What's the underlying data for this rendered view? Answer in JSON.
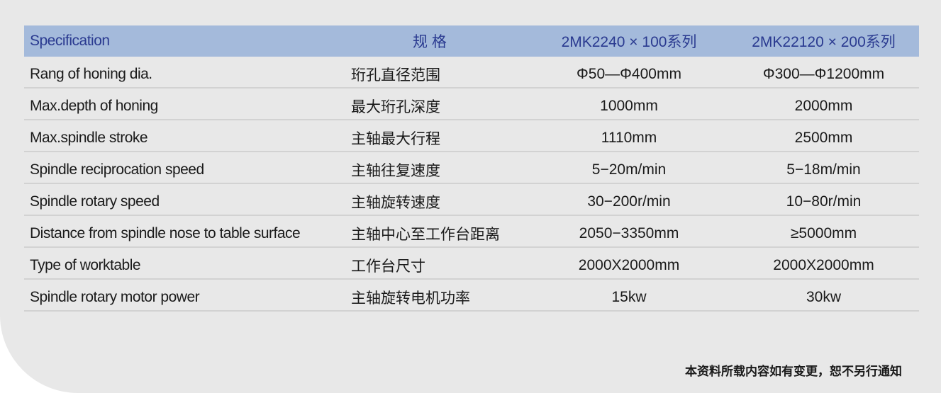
{
  "header": [
    "Specification",
    "规 格",
    "2MK2240 × 100系列",
    "2MK22120 × 200系列"
  ],
  "rows": [
    [
      "Rang of honing dia.",
      "珩孔直径范围",
      "Φ50—Φ400mm",
      "Φ300—Φ1200mm"
    ],
    [
      "Max.depth of honing",
      "最大珩孔深度",
      "1000mm",
      "2000mm"
    ],
    [
      "Max.spindle stroke",
      "主轴最大行程",
      "1110mm",
      "2500mm"
    ],
    [
      "Spindle reciprocation speed",
      "主轴往复速度",
      "5−20m/min",
      "5−18m/min"
    ],
    [
      "Spindle rotary speed",
      "主轴旋转速度",
      "30−200r/min",
      "10−80r/min"
    ],
    [
      "Distance from spindle nose to table surface",
      "主轴中心至工作台距离",
      "2050−3350mm",
      "≥5000mm"
    ],
    [
      "Type of worktable",
      "工作台尺寸",
      "2000X2000mm",
      "2000X2000mm"
    ],
    [
      "Spindle rotary motor power",
      "主轴旋转电机功率",
      "15kw",
      "30kw"
    ]
  ],
  "note": "本资料所载内容如有变更，恕不另行通知",
  "colors": {
    "header_bg": "#a4badb",
    "header_text": "#2a3a90",
    "panel_bg": "#e8e8e8"
  }
}
